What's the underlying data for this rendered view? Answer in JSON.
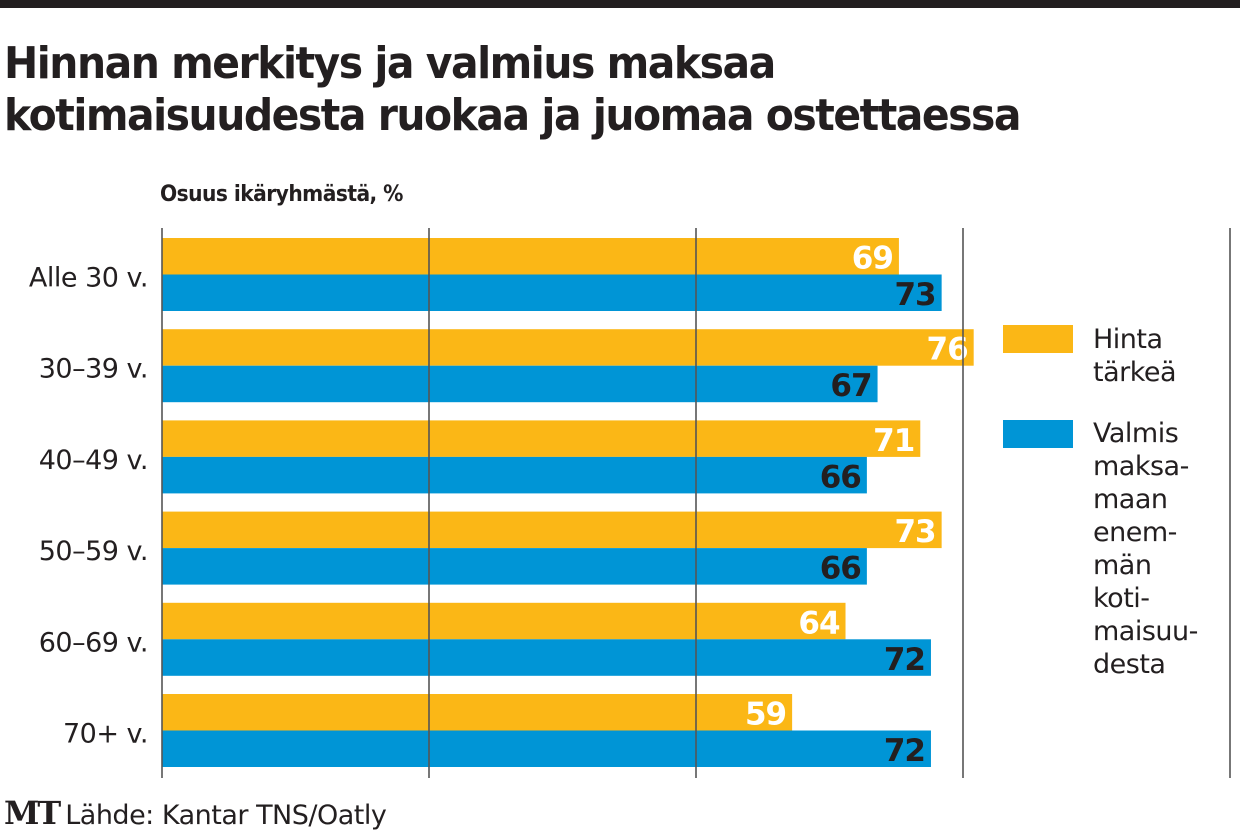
{
  "title_line1": "Hinnan merkitys ja valmius maksaa",
  "title_line2": "kotimaisuudesta ruokaa ja juomaa ostettaessa",
  "brand": "MT",
  "source": "Lähde: Kantar TNS/Oatly",
  "colors": {
    "orange": "#fbb716",
    "blue": "#0095d6",
    "grid": "#555555",
    "text": "#231f20"
  },
  "chart_data": {
    "type": "bar",
    "orientation": "horizontal",
    "title": "Hinnan merkitys ja valmius maksaa kotimaisuudesta ruokaa ja juomaa ostettaessa",
    "subtitle": "Osuus ikäryhmästä, %",
    "categories": [
      "Alle 30 v.",
      "30–39 v.",
      "40–49 v.",
      "50–59 v.",
      "60–69 v.",
      "70+ v."
    ],
    "series": [
      {
        "name": "Hinta tärkeä",
        "legend_lines": [
          "Hinta",
          "tärkeä"
        ],
        "color": "#fbb716",
        "label_color": "#ffffff",
        "values": [
          69,
          76,
          71,
          73,
          64,
          59
        ]
      },
      {
        "name": "Valmis maksamaan enemmän kotimaisuudesta",
        "legend_lines": [
          "Valmis",
          "maksa-",
          "maan",
          "enem-",
          "män",
          "koti-",
          "maisuu-",
          "desta"
        ],
        "color": "#0095d6",
        "label_color": "#231f20",
        "values": [
          73,
          67,
          66,
          66,
          72,
          72
        ]
      }
    ],
    "xlim": [
      0,
      100
    ],
    "gridlines": [
      0,
      25,
      50,
      75,
      100
    ],
    "grid": true,
    "legend_position": "right"
  }
}
